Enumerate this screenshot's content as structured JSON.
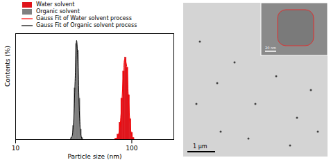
{
  "chart_data": {
    "type": "histogram",
    "x_label": "Particle size (nm)",
    "y_label": "Contents (%)",
    "log": "x",
    "xlim": [
      10,
      230
    ],
    "xticks": [
      10,
      100
    ],
    "ylim": [
      0,
      31
    ],
    "tick_labels": "x",
    "legend": "top-left",
    "series": [
      {
        "name": "Water solvent",
        "type": "histogram",
        "color": "#e0141b",
        "bins": [
          72,
          75,
          78,
          81,
          84,
          87,
          90,
          93,
          96,
          99,
          102,
          105
        ],
        "values": [
          0.3,
          1.5,
          5,
          12,
          20,
          24,
          21,
          13,
          6,
          2,
          0.5
        ]
      },
      {
        "name": "Organic solvent",
        "type": "histogram",
        "color": "#808080",
        "bins": [
          30,
          31,
          32,
          33,
          34,
          35,
          36,
          37,
          38
        ],
        "values": [
          0.6,
          4,
          15,
          28,
          26,
          12,
          3,
          0.5
        ]
      },
      {
        "name": "Gauss Fit of Water solvent process",
        "type": "line",
        "color": "#ff0000",
        "x": [
          72,
          75,
          78,
          81,
          84,
          87,
          90,
          93,
          96,
          99,
          102,
          105
        ],
        "values": [
          0.1,
          0.6,
          2.5,
          8,
          17,
          23.5,
          22,
          14,
          6,
          1.8,
          0.4,
          0.1
        ]
      },
      {
        "name": "Gauss Fit of Organic solvent process",
        "type": "line",
        "color": "#000000",
        "x": [
          29.5,
          30.5,
          31.5,
          32.5,
          33.5,
          34.5,
          35.5,
          36.5,
          37.5,
          38.5
        ],
        "values": [
          0.1,
          0.8,
          5,
          17,
          29,
          21,
          7,
          1.2,
          0.1,
          0
        ]
      }
    ]
  },
  "image_panel": {
    "scale_bar": "1 μm",
    "inset_scale_bar": "20 nm"
  }
}
